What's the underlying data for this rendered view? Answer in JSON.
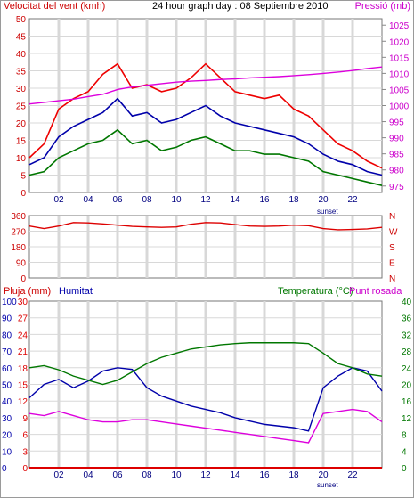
{
  "colors": {
    "wind": "#ee0000",
    "wind_avg": "#0000aa",
    "wind_min": "#007700",
    "pressure": "#dd00dd",
    "direction": "#dd0000",
    "humidity": "#0000aa",
    "temperature": "#007700",
    "dewpoint": "#dd00dd",
    "rain": "#dd0000",
    "grid": "#d8d8d8",
    "axis_text": "#cc0000"
  },
  "chart_data": [
    {
      "type": "line",
      "title": "24 hour graph day : 08 Septiembre 2010",
      "ylabel_left": "Velocitat del vent (kmh)",
      "ylabel_right": "Pressió (mb)",
      "x_ticks": [
        "02",
        "04",
        "06",
        "08",
        "10",
        "12",
        "14",
        "16",
        "18",
        "20",
        "22"
      ],
      "sunset_label": "sunset",
      "y_left_ticks": [
        "0",
        "5",
        "10",
        "15",
        "20",
        "25",
        "30",
        "35",
        "40",
        "45",
        "50"
      ],
      "y_right_ticks": [
        "975",
        "980",
        "985",
        "990",
        "995",
        "1000",
        "1005",
        "1010",
        "1015",
        "1020",
        "1025"
      ],
      "ylim_left": [
        0,
        50
      ],
      "ylim_right": [
        973,
        1027
      ],
      "x_hours": [
        0,
        1,
        2,
        3,
        4,
        5,
        6,
        7,
        8,
        9,
        10,
        11,
        12,
        13,
        14,
        15,
        16,
        17,
        18,
        19,
        20,
        21,
        22,
        23,
        24
      ],
      "series": [
        {
          "values": [
            10,
            14,
            24,
            27,
            29,
            34,
            37,
            30,
            31,
            29,
            30,
            33,
            37,
            33,
            29,
            28,
            27,
            28,
            24,
            22,
            18,
            14,
            12,
            9,
            7
          ]
        },
        {
          "values": [
            8,
            10,
            16,
            19,
            21,
            23,
            27,
            22,
            23,
            20,
            21,
            23,
            25,
            22,
            20,
            19,
            18,
            17,
            16,
            14,
            11,
            9,
            8,
            6,
            5
          ]
        },
        {
          "values": [
            5,
            6,
            10,
            12,
            14,
            15,
            18,
            14,
            15,
            12,
            13,
            15,
            16,
            14,
            12,
            12,
            11,
            11,
            10,
            9,
            6,
            5,
            4,
            3,
            2
          ]
        },
        {
          "values": [
            1000.5,
            1001,
            1001.5,
            1002,
            1002.8,
            1003.5,
            1005,
            1005.8,
            1006.3,
            1006.8,
            1007.3,
            1007.6,
            1007.8,
            1008.1,
            1008.3,
            1008.6,
            1008.8,
            1009,
            1009.3,
            1009.6,
            1010,
            1010.4,
            1010.9,
            1011.5,
            1012
          ]
        }
      ]
    },
    {
      "type": "line",
      "y_ticks": [
        "360",
        "270",
        "180",
        "90",
        "0"
      ],
      "y_right_ticks": [
        "N",
        "W",
        "S",
        "E",
        "N"
      ],
      "ylim": [
        0,
        360
      ],
      "x_hours": [
        0,
        1,
        2,
        3,
        4,
        5,
        6,
        7,
        8,
        9,
        10,
        11,
        12,
        13,
        14,
        15,
        16,
        17,
        18,
        19,
        20,
        21,
        22,
        23,
        24
      ],
      "series": [
        {
          "values": [
            300,
            285,
            300,
            320,
            318,
            312,
            305,
            298,
            295,
            292,
            295,
            310,
            320,
            318,
            308,
            300,
            298,
            300,
            305,
            302,
            285,
            278,
            280,
            283,
            292
          ]
        }
      ]
    },
    {
      "type": "line",
      "ylabel_left": "Pluja (mm)",
      "ylabel_left2": "Humitat",
      "ylabel_right": "Temperatura (°C)",
      "ylabel_right2": "Punt rosada",
      "x_ticks": [
        "02",
        "04",
        "06",
        "08",
        "10",
        "12",
        "14",
        "16",
        "18",
        "20",
        "22"
      ],
      "sunset_label": "sunset",
      "y_humidity_ticks": [
        "0",
        "10",
        "20",
        "30",
        "40",
        "50",
        "60",
        "70",
        "80",
        "90",
        "100"
      ],
      "y_rain_ticks": [
        "0",
        "3",
        "6",
        "9",
        "12",
        "15",
        "18",
        "21",
        "24",
        "27",
        "30"
      ],
      "y_temp_ticks": [
        "0",
        "4",
        "8",
        "12",
        "16",
        "20",
        "24",
        "28",
        "32",
        "36",
        "40"
      ],
      "ylim_humidity": [
        0,
        100
      ],
      "ylim_temp": [
        0,
        40
      ],
      "x_hours": [
        0,
        1,
        2,
        3,
        4,
        5,
        6,
        7,
        8,
        9,
        10,
        11,
        12,
        13,
        14,
        15,
        16,
        17,
        18,
        19,
        20,
        21,
        22,
        23,
        24
      ],
      "series": [
        {
          "values": [
            42,
            50,
            53,
            48,
            52,
            58,
            60,
            59,
            48,
            43,
            40,
            37,
            35,
            33,
            30,
            28,
            26,
            25,
            24,
            22,
            48,
            55,
            60,
            58,
            46
          ]
        },
        {
          "values": [
            24,
            24.5,
            23.5,
            22,
            21,
            20,
            21,
            23,
            25,
            26.5,
            27.5,
            28.5,
            29,
            29.5,
            29.8,
            30,
            30,
            30,
            30,
            29.8,
            27.5,
            25,
            24,
            22.5,
            22
          ]
        },
        {
          "values": [
            13,
            12.5,
            13.5,
            12.5,
            11.5,
            11,
            11,
            11.5,
            11.5,
            11,
            10.5,
            10,
            9.5,
            9,
            8.5,
            8,
            7.5,
            7,
            6.5,
            6,
            13,
            13.5,
            14,
            13.5,
            11
          ]
        },
        {
          "values": [
            0,
            0,
            0,
            0,
            0,
            0,
            0,
            0,
            0,
            0,
            0,
            0,
            0,
            0,
            0,
            0,
            0,
            0,
            0,
            0,
            0,
            0,
            0,
            0,
            0
          ]
        }
      ]
    }
  ]
}
